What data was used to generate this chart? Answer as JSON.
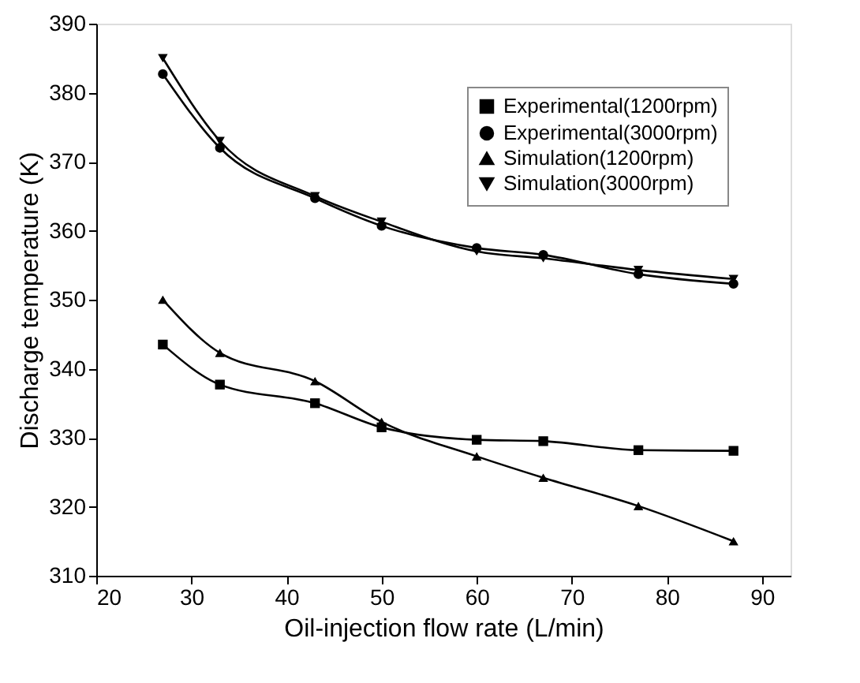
{
  "chart_data": {
    "type": "line",
    "xlabel": "Oil-injection flow rate (L/min)",
    "ylabel": "Discharge temperature (K)",
    "x": [
      27,
      33,
      43,
      50,
      60,
      67,
      77,
      87
    ],
    "series": [
      {
        "name": "Experimental(1200rpm)",
        "color": "#000000",
        "marker": "square",
        "values": [
          343.5,
          337.7,
          335,
          331.5,
          329.7,
          329.5,
          328.2,
          328.1
        ]
      },
      {
        "name": "Experimental(3000rpm)",
        "color": "#000000",
        "marker": "circle",
        "values": [
          382.7,
          372,
          364.7,
          360.7,
          357.5,
          356.5,
          353.7,
          352.3
        ]
      },
      {
        "name": "Simulation(1200rpm)",
        "color": "#000000",
        "marker": "triangle",
        "values": [
          350,
          342.3,
          338.2,
          332.3,
          327.3,
          324.2,
          320.1,
          315
        ]
      },
      {
        "name": "Simulation(3000rpm)",
        "color": "#000000",
        "marker": "triangle-down",
        "values": [
          385,
          373,
          365,
          361.3,
          357,
          356,
          354.3,
          353
        ]
      }
    ],
    "xlim": [
      20,
      93
    ],
    "xticks": [
      20,
      30,
      40,
      50,
      60,
      70,
      80,
      90
    ],
    "ylim": [
      310,
      390
    ],
    "yticks": [
      310,
      320,
      330,
      340,
      350,
      360,
      370,
      380,
      390
    ],
    "grid": false,
    "legend": "top right",
    "line_style": "solid"
  }
}
